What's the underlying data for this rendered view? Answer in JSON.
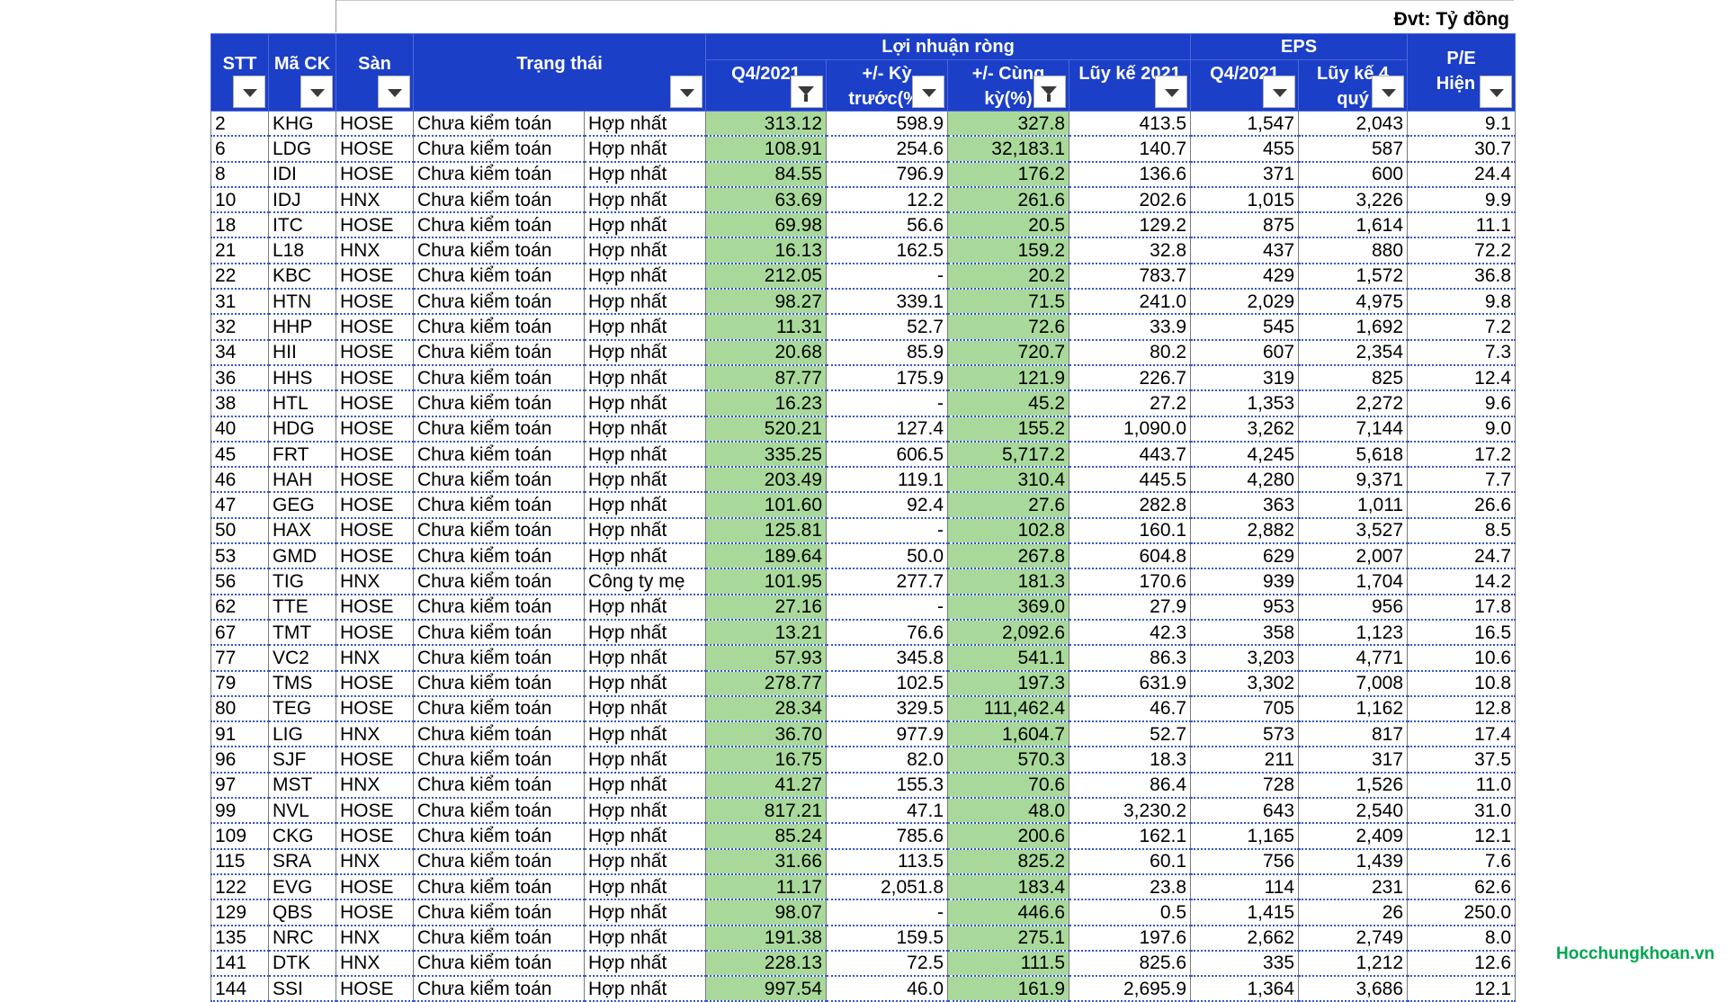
{
  "unit_label": "Đvt: Tỷ đồng",
  "watermark": "Hocchungkhoan.vn",
  "headers": {
    "stt": "STT",
    "ma_ck": "Mã CK",
    "san": "Sàn",
    "trang_thai": "Trạng thái",
    "loi_nhuan_rong": "Lợi nhuận ròng",
    "eps": "EPS",
    "pe_line1": "P/E",
    "pe_line2": "Hiện t",
    "q4": "Q4/2021",
    "ky_truoc_line1": "+/- Kỳ",
    "ky_truoc_line2": "trước(%)",
    "cung_ky_line1": "+/- Cùng",
    "cung_ky_line2": "kỳ(%)",
    "luy_ke": "Lũy kế 2021",
    "eps_q4": "Q4/2021",
    "eps_luy_ke_line1": "Lũy kế 4",
    "eps_luy_ke_line2": "quý"
  },
  "filter_states": {
    "q4": "active",
    "cung_ky": "active"
  },
  "colors": {
    "header_bg": "#1c3fc8",
    "profit_fill": "#a9d99a",
    "negative_highlight": "#e8112d",
    "watermark": "#00a650"
  },
  "rows": [
    {
      "stt": "2",
      "ma": "KHG",
      "san": "HOSE",
      "tt": "Chưa kiểm toán",
      "bc": "Hợp nhất",
      "q4": "313.12",
      "kt": "598.9",
      "ck": "327.8",
      "lk": "413.5",
      "lk_red": true,
      "eq4": "1,547",
      "elk": "2,043",
      "pe": "9.1"
    },
    {
      "stt": "6",
      "ma": "LDG",
      "san": "HOSE",
      "tt": "Chưa kiểm toán",
      "bc": "Hợp nhất",
      "q4": "108.91",
      "kt": "254.6",
      "ck": "32,183.1",
      "lk": "140.7",
      "lk_red": true,
      "eq4": "455",
      "elk": "587",
      "pe": "30.7"
    },
    {
      "stt": "8",
      "ma": "IDI",
      "san": "HOSE",
      "tt": "Chưa kiểm toán",
      "bc": "Hợp nhất",
      "q4": "84.55",
      "kt": "796.9",
      "ck": "176.2",
      "lk": "136.6",
      "lk_red": true,
      "eq4": "371",
      "elk": "600",
      "pe": "24.4"
    },
    {
      "stt": "10",
      "ma": "IDJ",
      "san": "HNX",
      "tt": "Chưa kiểm toán",
      "bc": "Hợp nhất",
      "q4": "63.69",
      "kt": "12.2",
      "ck": "261.6",
      "lk": "202.6",
      "lk_red": true,
      "eq4": "1,015",
      "elk": "3,226",
      "pe": "9.9"
    },
    {
      "stt": "18",
      "ma": "ITC",
      "san": "HOSE",
      "tt": "Chưa kiểm toán",
      "bc": "Hợp nhất",
      "q4": "69.98",
      "kt": "56.6",
      "ck": "20.5",
      "lk": "129.2",
      "lk_red": true,
      "eq4": "875",
      "elk": "1,614",
      "pe": "11.1"
    },
    {
      "stt": "21",
      "ma": "L18",
      "san": "HNX",
      "tt": "Chưa kiểm toán",
      "bc": "Hợp nhất",
      "q4": "16.13",
      "kt": "162.5",
      "ck": "159.2",
      "lk": "32.8",
      "lk_red": false,
      "eq4": "437",
      "elk": "880",
      "pe": "72.2"
    },
    {
      "stt": "22",
      "ma": "KBC",
      "san": "HOSE",
      "tt": "Chưa kiểm toán",
      "bc": "Hợp nhất",
      "q4": "212.05",
      "kt": "-",
      "ck": "20.2",
      "lk": "783.7",
      "lk_red": true,
      "eq4": "429",
      "elk": "1,572",
      "pe": "36.8"
    },
    {
      "stt": "31",
      "ma": "HTN",
      "san": "HOSE",
      "tt": "Chưa kiểm toán",
      "bc": "Hợp nhất",
      "q4": "98.27",
      "kt": "339.1",
      "ck": "71.5",
      "lk": "241.0",
      "lk_red": true,
      "eq4": "2,029",
      "elk": "4,975",
      "pe": "9.8"
    },
    {
      "stt": "32",
      "ma": "HHP",
      "san": "HOSE",
      "tt": "Chưa kiểm toán",
      "bc": "Hợp nhất",
      "q4": "11.31",
      "kt": "52.7",
      "ck": "72.6",
      "lk": "33.9",
      "lk_red": false,
      "eq4": "545",
      "elk": "1,692",
      "pe": "7.2"
    },
    {
      "stt": "34",
      "ma": "HII",
      "san": "HOSE",
      "tt": "Chưa kiểm toán",
      "bc": "Hợp nhất",
      "q4": "20.68",
      "kt": "85.9",
      "ck": "720.7",
      "lk": "80.2",
      "lk_red": false,
      "eq4": "607",
      "elk": "2,354",
      "pe": "7.3"
    },
    {
      "stt": "36",
      "ma": "HHS",
      "san": "HOSE",
      "tt": "Chưa kiểm toán",
      "bc": "Hợp nhất",
      "q4": "87.77",
      "kt": "175.9",
      "ck": "121.9",
      "lk": "226.7",
      "lk_red": true,
      "eq4": "319",
      "elk": "825",
      "pe": "12.4"
    },
    {
      "stt": "38",
      "ma": "HTL",
      "san": "HOSE",
      "tt": "Chưa kiểm toán",
      "bc": "Hợp nhất",
      "q4": "16.23",
      "kt": "-",
      "ck": "45.2",
      "lk": "27.2",
      "lk_red": false,
      "eq4": "1,353",
      "elk": "2,272",
      "pe": "9.6"
    },
    {
      "stt": "40",
      "ma": "HDG",
      "san": "HOSE",
      "tt": "Chưa kiểm toán",
      "bc": "Hợp nhất",
      "q4": "520.21",
      "kt": "127.4",
      "ck": "155.2",
      "lk": "1,090.0",
      "lk_red": true,
      "eq4": "3,262",
      "elk": "7,144",
      "pe": "9.0"
    },
    {
      "stt": "45",
      "ma": "FRT",
      "san": "HOSE",
      "tt": "Chưa kiểm toán",
      "bc": "Hợp nhất",
      "q4": "335.25",
      "kt": "606.5",
      "ck": "5,717.2",
      "lk": "443.7",
      "lk_red": true,
      "eq4": "4,245",
      "elk": "5,618",
      "pe": "17.2"
    },
    {
      "stt": "46",
      "ma": "HAH",
      "san": "HOSE",
      "tt": "Chưa kiểm toán",
      "bc": "Hợp nhất",
      "q4": "203.49",
      "kt": "119.1",
      "ck": "310.4",
      "lk": "445.5",
      "lk_red": true,
      "eq4": "4,280",
      "elk": "9,371",
      "pe": "7.7"
    },
    {
      "stt": "47",
      "ma": "GEG",
      "san": "HOSE",
      "tt": "Chưa kiểm toán",
      "bc": "Hợp nhất",
      "q4": "101.60",
      "kt": "92.4",
      "ck": "27.6",
      "lk": "282.8",
      "lk_red": true,
      "eq4": "363",
      "elk": "1,011",
      "pe": "26.6"
    },
    {
      "stt": "50",
      "ma": "HAX",
      "san": "HOSE",
      "tt": "Chưa kiểm toán",
      "bc": "Hợp nhất",
      "q4": "125.81",
      "kt": "-",
      "ck": "102.8",
      "lk": "160.1",
      "lk_red": true,
      "eq4": "2,882",
      "elk": "3,527",
      "pe": "8.5"
    },
    {
      "stt": "53",
      "ma": "GMD",
      "san": "HOSE",
      "tt": "Chưa kiểm toán",
      "bc": "Hợp nhất",
      "q4": "189.64",
      "kt": "50.0",
      "ck": "267.8",
      "lk": "604.8",
      "lk_red": true,
      "eq4": "629",
      "elk": "2,007",
      "pe": "24.7"
    },
    {
      "stt": "56",
      "ma": "TIG",
      "san": "HNX",
      "tt": "Chưa kiểm toán",
      "bc": "Công ty mẹ",
      "q4": "101.95",
      "kt": "277.7",
      "ck": "181.3",
      "lk": "170.6",
      "lk_red": true,
      "eq4": "939",
      "elk": "1,704",
      "pe": "14.2"
    },
    {
      "stt": "62",
      "ma": "TTE",
      "san": "HOSE",
      "tt": "Chưa kiểm toán",
      "bc": "Hợp nhất",
      "q4": "27.16",
      "kt": "-",
      "ck": "369.0",
      "lk": "27.9",
      "lk_red": false,
      "eq4": "953",
      "elk": "956",
      "pe": "17.8"
    },
    {
      "stt": "67",
      "ma": "TMT",
      "san": "HOSE",
      "tt": "Chưa kiểm toán",
      "bc": "Hợp nhất",
      "q4": "13.21",
      "kt": "76.6",
      "ck": "2,092.6",
      "lk": "42.3",
      "lk_red": false,
      "eq4": "358",
      "elk": "1,123",
      "pe": "16.5"
    },
    {
      "stt": "77",
      "ma": "VC2",
      "san": "HNX",
      "tt": "Chưa kiểm toán",
      "bc": "Hợp nhất",
      "q4": "57.93",
      "kt": "345.8",
      "ck": "541.1",
      "lk": "86.3",
      "lk_red": false,
      "eq4": "3,203",
      "elk": "4,771",
      "pe": "10.6"
    },
    {
      "stt": "79",
      "ma": "TMS",
      "san": "HOSE",
      "tt": "Chưa kiểm toán",
      "bc": "Hợp nhất",
      "q4": "278.77",
      "kt": "102.5",
      "ck": "197.3",
      "lk": "631.9",
      "lk_red": true,
      "eq4": "3,302",
      "elk": "7,008",
      "pe": "10.8"
    },
    {
      "stt": "80",
      "ma": "TEG",
      "san": "HOSE",
      "tt": "Chưa kiểm toán",
      "bc": "Hợp nhất",
      "q4": "28.34",
      "kt": "329.5",
      "ck": "111,462.4",
      "lk": "46.7",
      "lk_red": false,
      "eq4": "705",
      "elk": "1,162",
      "pe": "12.8"
    },
    {
      "stt": "91",
      "ma": "LIG",
      "san": "HNX",
      "tt": "Chưa kiểm toán",
      "bc": "Hợp nhất",
      "q4": "36.70",
      "kt": "977.9",
      "ck": "1,604.7",
      "lk": "52.7",
      "lk_red": false,
      "eq4": "573",
      "elk": "817",
      "pe": "17.4"
    },
    {
      "stt": "96",
      "ma": "SJF",
      "san": "HOSE",
      "tt": "Chưa kiểm toán",
      "bc": "Hợp nhất",
      "q4": "16.75",
      "kt": "82.0",
      "ck": "570.3",
      "lk": "18.3",
      "lk_red": false,
      "eq4": "211",
      "elk": "317",
      "pe": "37.5"
    },
    {
      "stt": "97",
      "ma": "MST",
      "san": "HNX",
      "tt": "Chưa kiểm toán",
      "bc": "Hợp nhất",
      "q4": "41.27",
      "kt": "155.3",
      "ck": "70.6",
      "lk": "86.4",
      "lk_red": false,
      "eq4": "728",
      "elk": "1,526",
      "pe": "11.0"
    },
    {
      "stt": "99",
      "ma": "NVL",
      "san": "HOSE",
      "tt": "Chưa kiểm toán",
      "bc": "Hợp nhất",
      "q4": "817.21",
      "kt": "47.1",
      "ck": "48.0",
      "lk": "3,230.2",
      "lk_red": true,
      "eq4": "643",
      "elk": "2,540",
      "pe": "31.0"
    },
    {
      "stt": "109",
      "ma": "CKG",
      "san": "HOSE",
      "tt": "Chưa kiểm toán",
      "bc": "Hợp nhất",
      "q4": "85.24",
      "kt": "785.6",
      "ck": "200.6",
      "lk": "162.1",
      "lk_red": true,
      "eq4": "1,165",
      "elk": "2,409",
      "pe": "12.1"
    },
    {
      "stt": "115",
      "ma": "SRA",
      "san": "HNX",
      "tt": "Chưa kiểm toán",
      "bc": "Hợp nhất",
      "q4": "31.66",
      "kt": "113.5",
      "ck": "825.2",
      "lk": "60.1",
      "lk_red": false,
      "eq4": "756",
      "elk": "1,439",
      "pe": "7.6"
    },
    {
      "stt": "122",
      "ma": "EVG",
      "san": "HOSE",
      "tt": "Chưa kiểm toán",
      "bc": "Hợp nhất",
      "q4": "11.17",
      "kt": "2,051.8",
      "ck": "183.4",
      "lk": "23.8",
      "lk_red": false,
      "eq4": "114",
      "elk": "231",
      "pe": "62.6"
    },
    {
      "stt": "129",
      "ma": "QBS",
      "san": "HOSE",
      "tt": "Chưa kiểm toán",
      "bc": "Hợp nhất",
      "q4": "98.07",
      "kt": "-",
      "ck": "446.6",
      "lk": "0.5",
      "lk_red": false,
      "eq4": "1,415",
      "elk": "26",
      "pe": "250.0"
    },
    {
      "stt": "135",
      "ma": "NRC",
      "san": "HNX",
      "tt": "Chưa kiểm toán",
      "bc": "Hợp nhất",
      "q4": "191.38",
      "kt": "159.5",
      "ck": "275.1",
      "lk": "197.6",
      "lk_red": true,
      "eq4": "2,662",
      "elk": "2,749",
      "pe": "8.0"
    },
    {
      "stt": "141",
      "ma": "DTK",
      "san": "HNX",
      "tt": "Chưa kiểm toán",
      "bc": "Hợp nhất",
      "q4": "228.13",
      "kt": "72.5",
      "ck": "111.5",
      "lk": "825.6",
      "lk_red": true,
      "eq4": "335",
      "elk": "1,212",
      "pe": "12.6"
    },
    {
      "stt": "144",
      "ma": "SSI",
      "san": "HOSE",
      "tt": "Chưa kiểm toán",
      "bc": "Hợp nhất",
      "q4": "997.54",
      "kt": "46.0",
      "ck": "161.9",
      "lk": "2,695.9",
      "lk_red": true,
      "eq4": "1,364",
      "elk": "3,686",
      "pe": "12.1"
    }
  ]
}
